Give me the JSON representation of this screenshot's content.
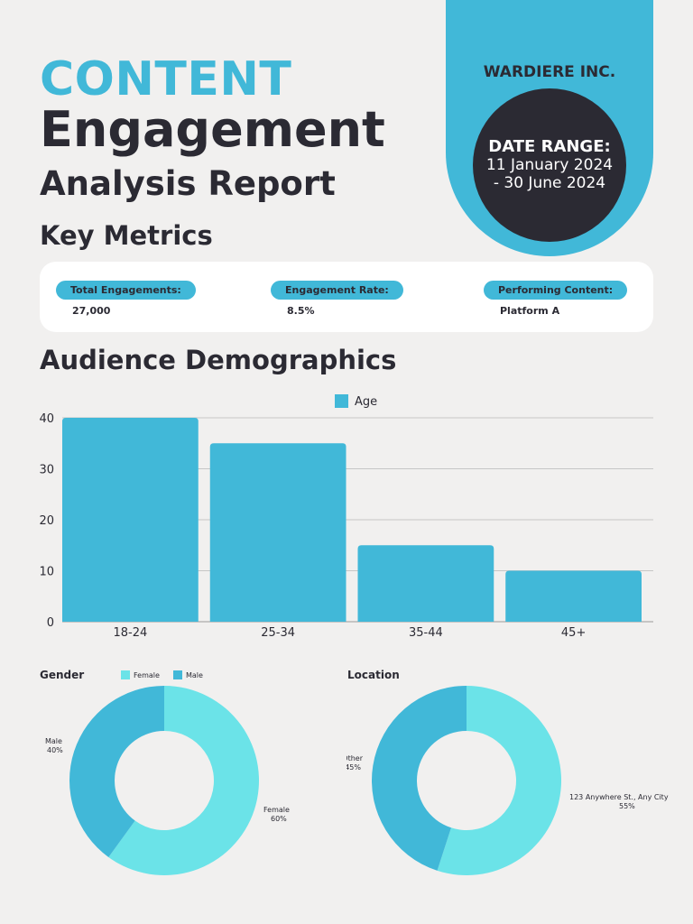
{
  "header": {
    "title_line1": "CONTENT",
    "title_line2": "Engagement",
    "title_line3": "Analysis Report",
    "company": "WARDIERE INC.",
    "date_label": "DATE RANGE:",
    "date_line1": "11 January 2024",
    "date_line2": "- 30 June 2024"
  },
  "key_metrics": {
    "heading": "Key Metrics",
    "items": [
      {
        "label": "Total Engagements:",
        "value": "27,000"
      },
      {
        "label": "Engagement Rate:",
        "value": "8.5%"
      },
      {
        "label": "Performing Content:",
        "value": "Platform A"
      }
    ]
  },
  "demographics": {
    "heading": "Audience Demographics"
  },
  "colors": {
    "accent": "#41b8d8",
    "dark": "#2b2a33",
    "light_cyan": "#6be3e8",
    "background": "#f1f0ef"
  },
  "chart_data": [
    {
      "type": "bar",
      "title": "",
      "legend": [
        "Age"
      ],
      "legend_position": "top",
      "categories": [
        "18-24",
        "25-34",
        "35-44",
        "45+"
      ],
      "series": [
        {
          "name": "Age",
          "values": [
            40,
            35,
            15,
            10
          ]
        }
      ],
      "ylim": [
        0,
        40
      ],
      "yticks": [
        0,
        10,
        20,
        30,
        40
      ],
      "grid": true,
      "xlabel": "",
      "ylabel": ""
    },
    {
      "type": "pie",
      "donut": true,
      "title": "Gender",
      "legend": [
        "Female",
        "Male"
      ],
      "legend_position": "top",
      "slices": [
        {
          "label": "Female",
          "value": 60,
          "display": "60%",
          "color": "#6be3e8"
        },
        {
          "label": "Male",
          "value": 40,
          "display": "40%",
          "color": "#41b8d8"
        }
      ]
    },
    {
      "type": "pie",
      "donut": true,
      "title": "Location",
      "slices": [
        {
          "label": "123 Anywhere St., Any City",
          "value": 55,
          "display": "55%",
          "color": "#6be3e8"
        },
        {
          "label": "Other",
          "value": 45,
          "display": "45%",
          "color": "#41b8d8"
        }
      ]
    }
  ]
}
